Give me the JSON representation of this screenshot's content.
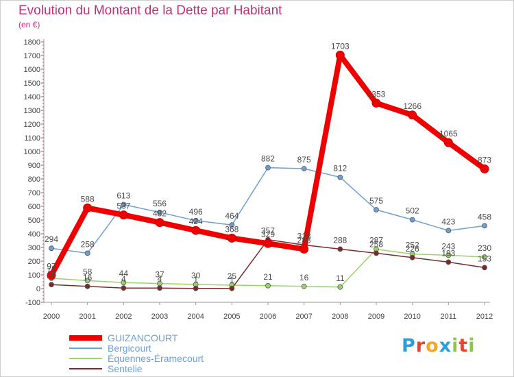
{
  "header": {
    "title": "Evolution du Montant de la Dette par Habitant",
    "subtitle": "(en €)"
  },
  "logo": {
    "text": "Proxiti",
    "colors": [
      "#2aa0d8",
      "#e8462a",
      "#f5a623",
      "#2aa0d8",
      "#8dc63f",
      "#e8462a",
      "#8dc63f"
    ]
  },
  "chart_data": {
    "type": "line",
    "title": "Evolution du Montant de la Dette par Habitant",
    "ylabel": "(en €)",
    "xlabel": "",
    "x": [
      "2000",
      "2001",
      "2002",
      "2003",
      "2004",
      "2005",
      "2006",
      "2007",
      "2008",
      "2009",
      "2010",
      "2011",
      "2012"
    ],
    "ylim": [
      -100,
      1800
    ],
    "yticks": [
      "-100",
      "0",
      "100",
      "200",
      "300",
      "400",
      "500",
      "600",
      "700",
      "800",
      "900",
      "1000",
      "1100",
      "1200",
      "1300",
      "1400",
      "1500",
      "1600",
      "1700",
      "1800"
    ],
    "grid": false,
    "legend": "bottom-left",
    "series": [
      {
        "name": "GUIZANCOURT",
        "color": "#ee0000",
        "emphasis": true,
        "values": [
          97,
          588,
          537,
          482,
          424,
          368,
          329,
          288,
          1703,
          1353,
          1266,
          1065,
          873
        ]
      },
      {
        "name": "Bergicourt",
        "color": "#6e9fd0",
        "emphasis": false,
        "values": [
          294,
          258,
          613,
          556,
          496,
          464,
          882,
          875,
          812,
          575,
          502,
          423,
          458
        ]
      },
      {
        "name": "Équennes-Éramecourt",
        "color": "#9ad468",
        "emphasis": false,
        "values": [
          75,
          58,
          44,
          37,
          30,
          25,
          21,
          16,
          11,
          287,
          252,
          243,
          230
        ]
      },
      {
        "name": "Sentelie",
        "color": "#7a2a2a",
        "emphasis": false,
        "values": [
          29,
          16,
          4,
          4,
          1,
          1,
          357,
          318,
          288,
          258,
          226,
          193,
          153
        ]
      }
    ]
  }
}
